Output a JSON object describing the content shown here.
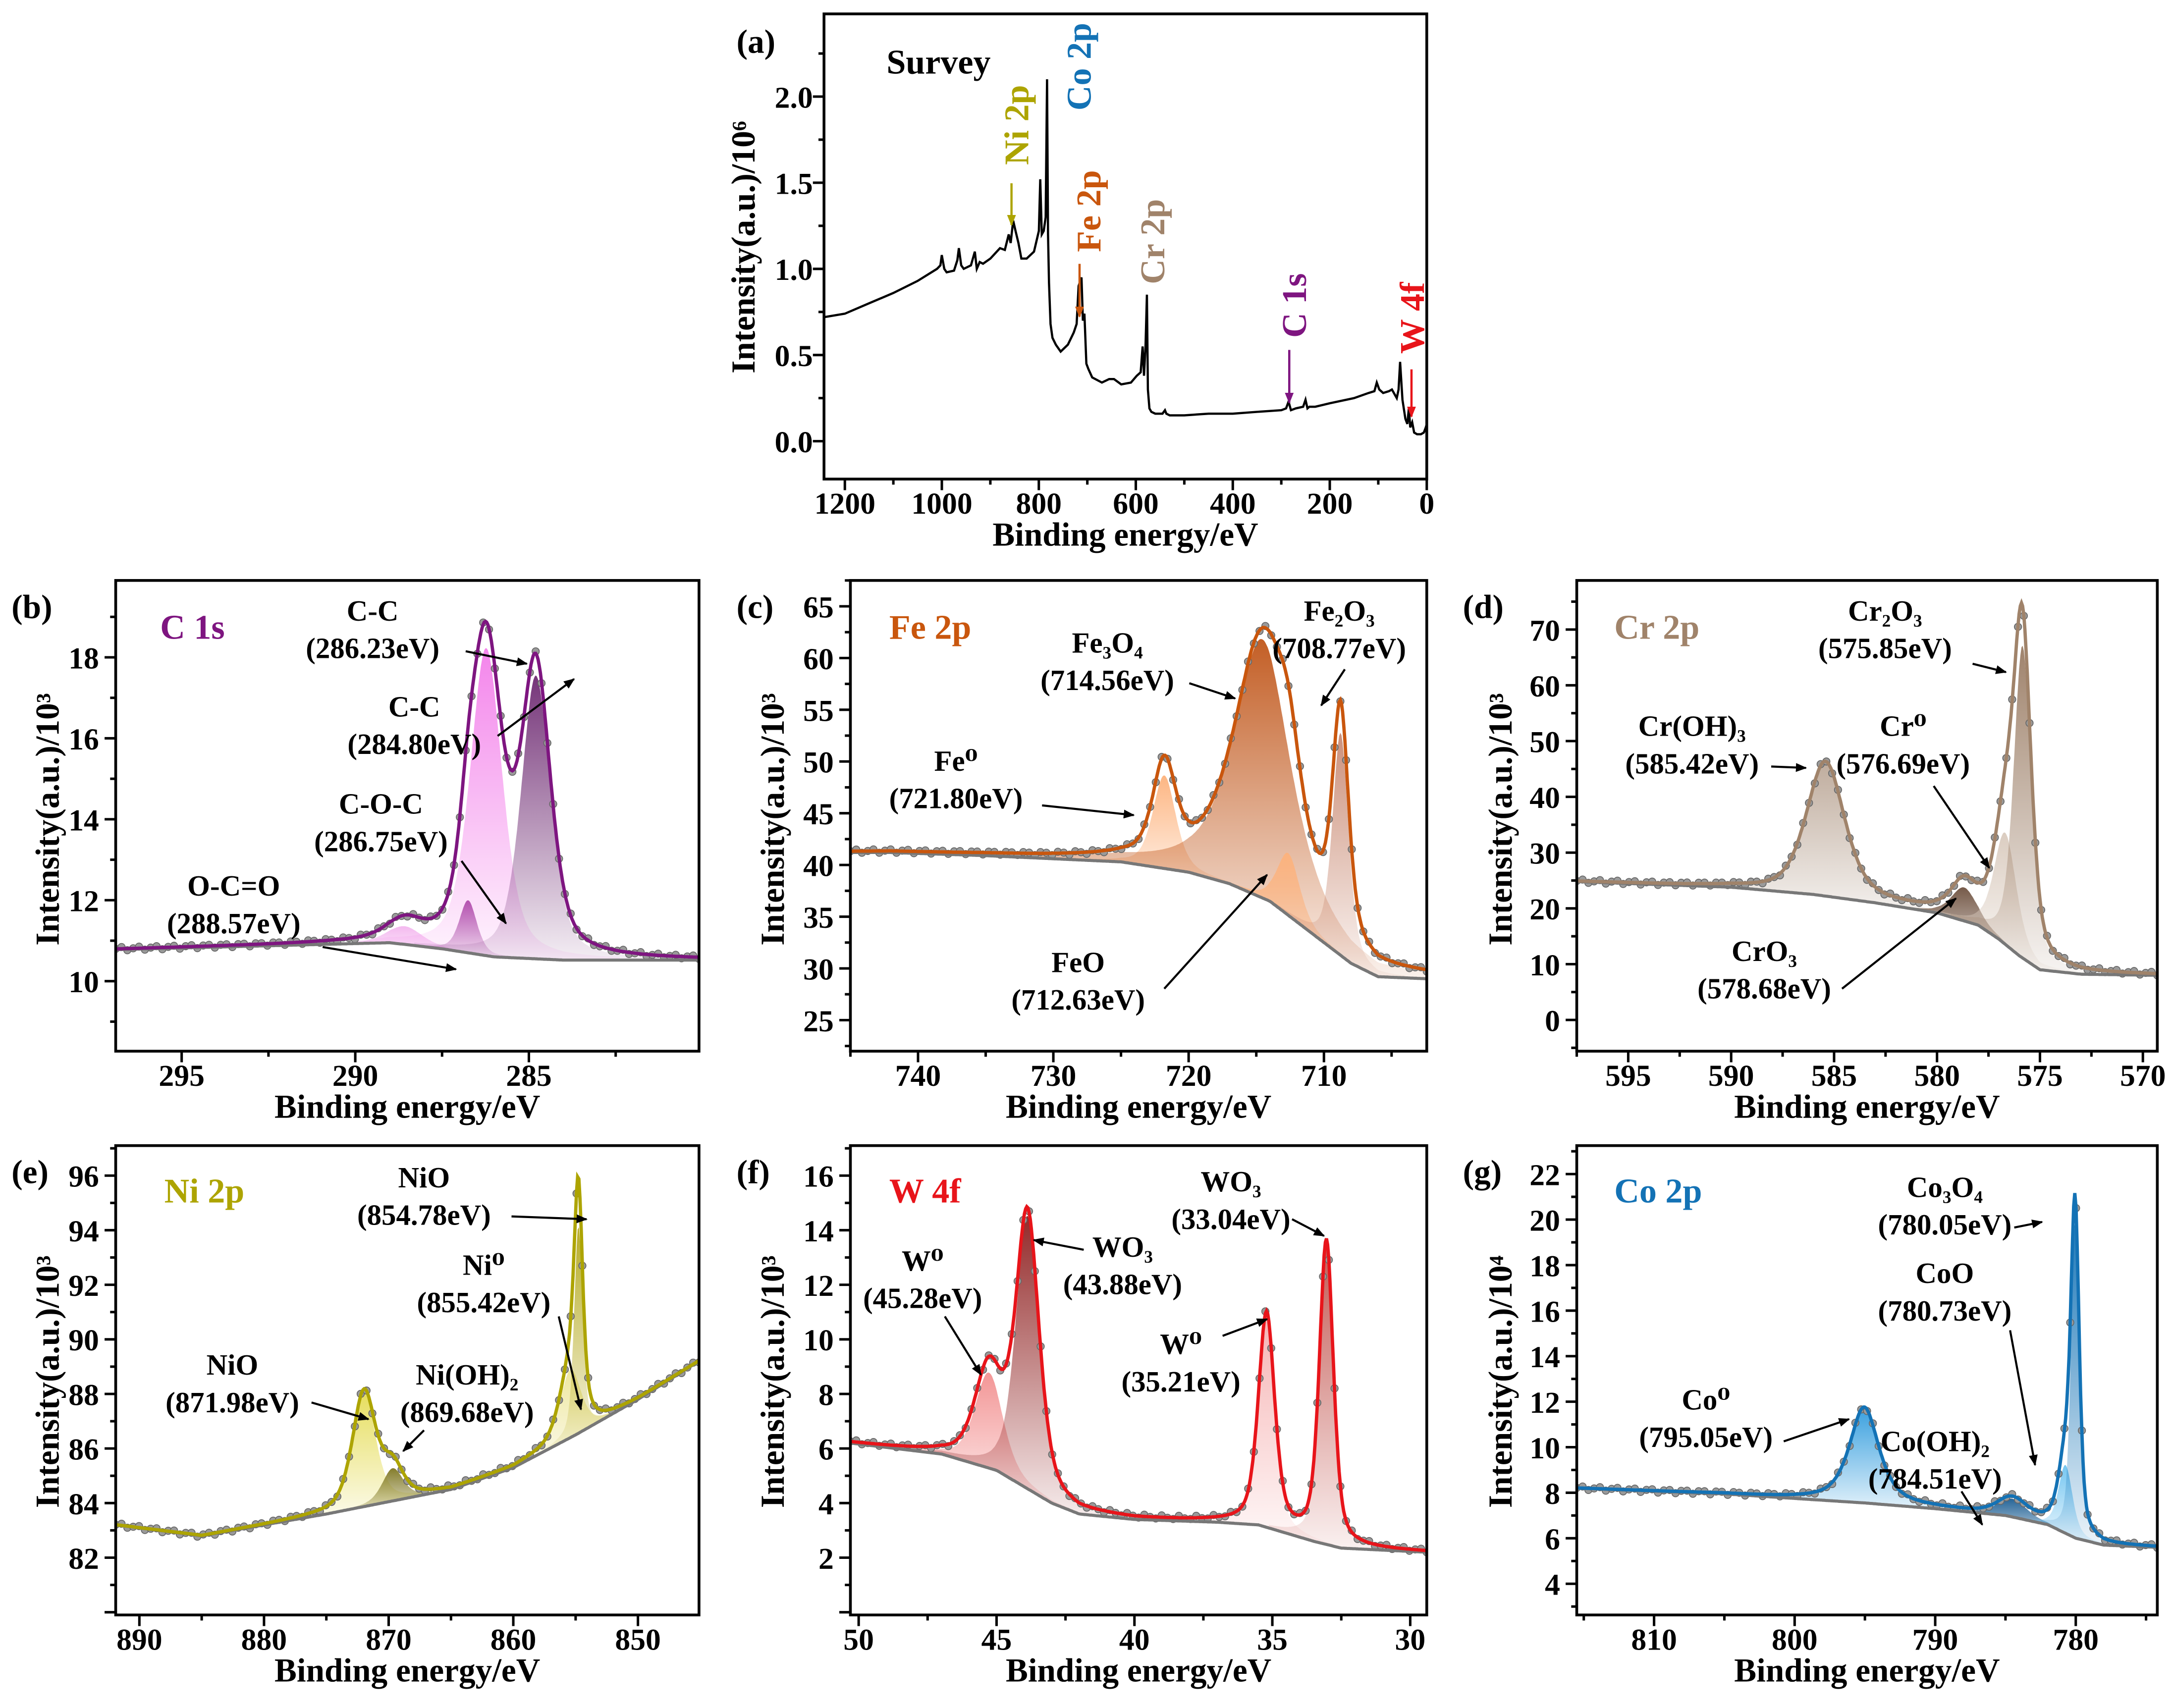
{
  "chart_data": [
    {
      "panel": "(a)",
      "type": "line",
      "title": "Survey",
      "xlabel": "Binding energy/eV",
      "ylabel": "Intensity(a.u.)/10⁶",
      "xlim": [
        1243,
        0
      ],
      "ylim": [
        -0.22,
        2.48
      ],
      "xticks": [
        1200,
        1000,
        800,
        600,
        400,
        200,
        0
      ],
      "yticks": [
        0.0,
        0.5,
        1.0,
        1.5,
        2.0
      ],
      "ytick_decimals": 1,
      "color": "#000000",
      "series": [
        {
          "name": "Survey",
          "x": [
            1243,
            1200,
            1150,
            1100,
            1050,
            1010,
            1003,
            1000,
            995,
            990,
            975,
            968,
            965,
            960,
            955,
            940,
            932,
            928,
            922,
            915,
            900,
            880,
            870,
            862,
            858,
            853,
            848,
            842,
            836,
            825,
            810,
            800,
            797,
            794,
            790,
            786,
            783,
            781,
            779,
            776,
            772,
            765,
            755,
            740,
            728,
            722,
            718,
            712,
            709,
            706,
            702,
            698,
            690,
            670,
            655,
            645,
            630,
            610,
            598,
            590,
            586,
            583,
            580,
            577,
            575,
            572,
            568,
            560,
            545,
            540,
            537,
            530,
            500,
            450,
            400,
            350,
            300,
            290,
            285,
            280,
            270,
            255,
            250,
            246,
            242,
            230,
            200,
            150,
            120,
            108,
            103,
            98,
            90,
            78,
            72,
            62,
            58,
            55,
            50,
            44,
            40,
            37,
            34,
            30,
            26,
            20,
            12,
            6,
            2,
            0
          ],
          "y": [
            0.72,
            0.74,
            0.8,
            0.86,
            0.93,
            1.0,
            1.02,
            1.08,
            1.0,
            0.98,
            0.99,
            1.05,
            1.12,
            1.02,
            1.0,
            1.02,
            1.1,
            1.0,
            1.04,
            1.03,
            1.06,
            1.12,
            1.11,
            1.2,
            1.15,
            1.28,
            1.22,
            1.15,
            1.06,
            1.06,
            1.1,
            1.22,
            1.52,
            1.2,
            1.22,
            1.3,
            2.1,
            1.2,
            0.92,
            0.68,
            0.6,
            0.56,
            0.52,
            0.56,
            0.63,
            0.68,
            0.9,
            0.95,
            0.7,
            0.74,
            0.45,
            0.42,
            0.37,
            0.34,
            0.36,
            0.36,
            0.33,
            0.34,
            0.38,
            0.4,
            0.55,
            0.38,
            0.55,
            0.85,
            0.3,
            0.19,
            0.17,
            0.16,
            0.16,
            0.18,
            0.16,
            0.15,
            0.15,
            0.16,
            0.16,
            0.17,
            0.18,
            0.19,
            0.23,
            0.18,
            0.19,
            0.2,
            0.24,
            0.19,
            0.2,
            0.2,
            0.22,
            0.25,
            0.28,
            0.29,
            0.34,
            0.3,
            0.28,
            0.29,
            0.3,
            0.25,
            0.3,
            0.46,
            0.24,
            0.13,
            0.1,
            0.19,
            0.08,
            0.11,
            0.05,
            0.04,
            0.04,
            0.05,
            0.08,
            0.1
          ]
        }
      ],
      "peak_labels": [
        {
          "text": "Ni 2p",
          "color": "#ADA400"
        },
        {
          "text": "Co 2p",
          "color": "#1372B5"
        },
        {
          "text": "Fe 2p",
          "color": "#C9560D"
        },
        {
          "text": "Cr 2p",
          "color": "#A0836A"
        },
        {
          "text": "C 1s",
          "color": "#7E1580"
        },
        {
          "text": "W 4f",
          "color": "#E8141A"
        }
      ]
    },
    {
      "panel": "(b)",
      "type": "line",
      "title": "C 1s",
      "title_color": "#7E1580",
      "xlabel": "Binding energy/eV",
      "ylabel": "Intensity(a.u.)/10³",
      "xlim": [
        296.9,
        280.1
      ],
      "ylim": [
        8.27,
        19.9
      ],
      "xticks": [
        295,
        290,
        285
      ],
      "yticks": [
        10,
        12,
        14,
        16,
        18
      ],
      "envelope_color": "#7E1580",
      "background_color": "#777777",
      "background": {
        "x": [
          296.9,
          289,
          287.5,
          286,
          284,
          280.1
        ],
        "y": [
          10.78,
          10.95,
          10.8,
          10.6,
          10.52,
          10.52
        ]
      },
      "components": [
        {
          "name": "O-C=O",
          "energy": "(288.57eV)",
          "center": 288.57,
          "height": 0.45,
          "fwhm": 1.2,
          "mix": 0.5,
          "color": "#F3B5EE"
        },
        {
          "name": "C-O-C",
          "energy": "(286.75eV)",
          "center": 286.75,
          "height": 1.3,
          "fwhm": 0.6,
          "mix": 0.5,
          "color": "#9B3A98"
        },
        {
          "name": "C-C",
          "energy": "(286.23eV)",
          "center": 286.23,
          "height": 7.6,
          "fwhm": 1.1,
          "mix": 0.5,
          "color": "#F37FEA"
        },
        {
          "name": "C-C",
          "energy": "(284.80eV)",
          "center": 284.8,
          "height": 7.0,
          "fwhm": 1.0,
          "mix": 0.5,
          "color": "#6E2A72"
        }
      ]
    },
    {
      "panel": "(c)",
      "type": "line",
      "title": "Fe 2p",
      "title_color": "#C9560D",
      "xlabel": "Binding energy/eV",
      "ylabel": "Intensity(a.u.)/10³",
      "xlim": [
        745,
        702.4
      ],
      "ylim": [
        22,
        67.5
      ],
      "xticks": [
        740,
        730,
        720,
        710
      ],
      "yticks": [
        25,
        30,
        35,
        40,
        45,
        50,
        55,
        60,
        65
      ],
      "envelope_color": "#C9560D",
      "background_color": "#777777",
      "background": {
        "x": [
          745,
          742,
          735,
          725,
          720,
          717,
          714,
          712,
          710,
          708,
          706,
          702.4
        ],
        "y": [
          41.2,
          41.2,
          40.9,
          40.3,
          39.3,
          38.2,
          36.5,
          34.5,
          32.5,
          30.5,
          29.2,
          29.0
        ]
      },
      "components": [
        {
          "name": "Fe⁰",
          "energy": "(721.80eV)",
          "center": 721.8,
          "height": 9,
          "fwhm": 2.0,
          "mix": 0.5,
          "color": "#FDB27C"
        },
        {
          "name": "Fe₃O₄",
          "energy": "(714.56eV)",
          "center": 714.56,
          "height": 25,
          "fwhm": 5.0,
          "mix": 0.7,
          "color": "#C0561A"
        },
        {
          "name": "FeO",
          "energy": "(712.63eV)",
          "center": 712.63,
          "height": 6,
          "fwhm": 2.0,
          "mix": 0.5,
          "color": "#FDB27C"
        },
        {
          "name": "Fe₂O₃",
          "energy": "(708.77eV)",
          "center": 708.77,
          "height": 21.5,
          "fwhm": 1.4,
          "mix": 0.5,
          "color": "#C98A73"
        }
      ]
    },
    {
      "panel": "(d)",
      "type": "line",
      "title": "Cr 2p",
      "title_color": "#A0836A",
      "xlabel": "Binding energy/eV",
      "ylabel": "Intensity(a.u.)/10³",
      "xlim": [
        597.5,
        569.3
      ],
      "ylim": [
        -5.6,
        78.8
      ],
      "xticks": [
        595,
        590,
        585,
        580,
        575,
        570
      ],
      "yticks": [
        0,
        10,
        20,
        30,
        40,
        50,
        60,
        70
      ],
      "envelope_color": "#A0836A",
      "background_color": "#777777",
      "background": {
        "x": [
          597.5,
          590,
          586,
          583,
          580,
          578,
          577,
          576,
          575,
          573,
          569.3
        ],
        "y": [
          24.8,
          23.8,
          22.5,
          21,
          19.2,
          17,
          14.5,
          11.5,
          9,
          8.2,
          8
        ]
      },
      "components": [
        {
          "name": "Cr(OH)₃",
          "energy": "(585.42eV)",
          "center": 585.42,
          "height": 24,
          "fwhm": 2.2,
          "mix": 0.5,
          "color": "#BCA898"
        },
        {
          "name": "CrO₃",
          "energy": "(578.68eV)",
          "center": 578.68,
          "height": 6,
          "fwhm": 1.5,
          "mix": 0.5,
          "color": "#6F5240"
        },
        {
          "name": "Cr⁰",
          "energy": "(576.69eV)",
          "center": 576.69,
          "height": 20,
          "fwhm": 1.3,
          "mix": 0.5,
          "color": "#D9CABD"
        },
        {
          "name": "Cr₂O₃",
          "energy": "(575.85eV)",
          "center": 575.85,
          "height": 56,
          "fwhm": 1.0,
          "mix": 0.5,
          "color": "#9A7C64"
        }
      ]
    },
    {
      "panel": "(e)",
      "type": "line",
      "title": "Ni 2p",
      "title_color": "#ADA400",
      "xlabel": "Binding energy/eV",
      "ylabel": "Intensity(a.u.)/10³",
      "xlim": [
        891.9,
        845.1
      ],
      "ylim": [
        79.9,
        97.1
      ],
      "xticks": [
        890,
        880,
        870,
        860,
        850
      ],
      "yticks": [
        82,
        84,
        86,
        88,
        90,
        92,
        94,
        96
      ],
      "envelope_color": "#ADA400",
      "background_color": "#777777",
      "background": {
        "x": [
          891.9,
          885,
          875,
          865,
          860,
          855,
          850,
          845.1
        ],
        "y": [
          83.2,
          82.8,
          83.6,
          84.5,
          85.3,
          86.5,
          87.8,
          89.2
        ]
      },
      "components": [
        {
          "name": "NiO",
          "energy": "(871.98eV)",
          "center": 871.98,
          "height": 4.2,
          "fwhm": 2.2,
          "mix": 0.5,
          "color": "#E5DC55"
        },
        {
          "name": "Ni(OH)₂",
          "energy": "(869.68eV)",
          "center": 869.68,
          "height": 1.2,
          "fwhm": 2.0,
          "mix": 0.5,
          "color": "#7E7620"
        },
        {
          "name": "Ni⁰",
          "energy": "(855.42eV)",
          "center": 855.42,
          "height": 2.5,
          "fwhm": 2.0,
          "mix": 0.5,
          "color": "#EDE69A"
        },
        {
          "name": "NiO",
          "energy": "(854.78eV)",
          "center": 854.78,
          "height": 7.6,
          "fwhm": 0.8,
          "mix": 0.5,
          "color": "#B3A81A"
        }
      ]
    },
    {
      "panel": "(f)",
      "type": "line",
      "title": "W 4f",
      "title_color": "#E8141A",
      "xlabel": "Binding energy/eV",
      "ylabel": "Intensity(a.u.)/10³",
      "xlim": [
        50.3,
        29.4
      ],
      "ylim": [
        -0.1,
        17.1
      ],
      "xticks": [
        50,
        45,
        40,
        35,
        30
      ],
      "yticks": [
        2,
        4,
        6,
        8,
        10,
        12,
        14,
        16
      ],
      "envelope_color": "#E8141A",
      "background_color": "#777777",
      "background": {
        "x": [
          50.3,
          47,
          45,
          44,
          43,
          42,
          40,
          37,
          35.5,
          34.5,
          33.5,
          32.5,
          29.4
        ],
        "y": [
          6.2,
          5.8,
          5.2,
          4.6,
          4.0,
          3.6,
          3.4,
          3.3,
          3.2,
          2.9,
          2.6,
          2.35,
          2.2
        ]
      },
      "components": [
        {
          "name": "W⁰",
          "energy": "(45.28eV)",
          "center": 45.28,
          "height": 3.5,
          "fwhm": 1.2,
          "mix": 0.5,
          "color": "#F29090"
        },
        {
          "name": "WO₃",
          "energy": "(43.88eV)",
          "center": 43.88,
          "height": 10,
          "fwhm": 1.0,
          "mix": 0.5,
          "color": "#8E1F1F"
        },
        {
          "name": "W⁰",
          "energy": "(35.21eV)",
          "center": 35.21,
          "height": 7.8,
          "fwhm": 0.7,
          "mix": 0.5,
          "color": "#F5B0B0"
        },
        {
          "name": "WO₃",
          "energy": "(33.04eV)",
          "center": 33.04,
          "height": 11.1,
          "fwhm": 0.6,
          "mix": 0.5,
          "color": "#C0504A"
        }
      ]
    },
    {
      "panel": "(g)",
      "type": "line",
      "title": "Co 2p",
      "title_color": "#1372B5",
      "xlabel": "Binding energy/eV",
      "ylabel": "Intensity(a.u.)/10⁴",
      "xlim": [
        815.5,
        774.2
      ],
      "ylim": [
        2.63,
        23.25
      ],
      "xticks": [
        810,
        800,
        790,
        780
      ],
      "yticks": [
        4,
        6,
        8,
        10,
        12,
        14,
        16,
        18,
        20,
        22
      ],
      "envelope_color": "#1372B5",
      "background_color": "#777777",
      "background": {
        "x": [
          815.5,
          805,
          795,
          790,
          785,
          782,
          780,
          778,
          774.2
        ],
        "y": [
          8.2,
          7.95,
          7.55,
          7.3,
          7.0,
          6.6,
          6.0,
          5.7,
          5.6
        ]
      },
      "components": [
        {
          "name": "Co⁰",
          "energy": "(795.05eV)",
          "center": 795.05,
          "height": 4.2,
          "fwhm": 2.5,
          "mix": 0.7,
          "color": "#2F9BDD"
        },
        {
          "name": "Co(OH)₂",
          "energy": "(784.51eV)",
          "center": 784.51,
          "height": 0.8,
          "fwhm": 2.5,
          "mix": 0.5,
          "color": "#1B5D92"
        },
        {
          "name": "CoO",
          "energy": "(780.73eV)",
          "center": 780.73,
          "height": 3.0,
          "fwhm": 1.2,
          "mix": 0.5,
          "color": "#6EC3F0"
        },
        {
          "name": "Co₃O₄",
          "energy": "(780.05eV)",
          "center": 780.05,
          "height": 13.8,
          "fwhm": 0.7,
          "mix": 0.5,
          "color": "#1372B5"
        }
      ]
    }
  ]
}
